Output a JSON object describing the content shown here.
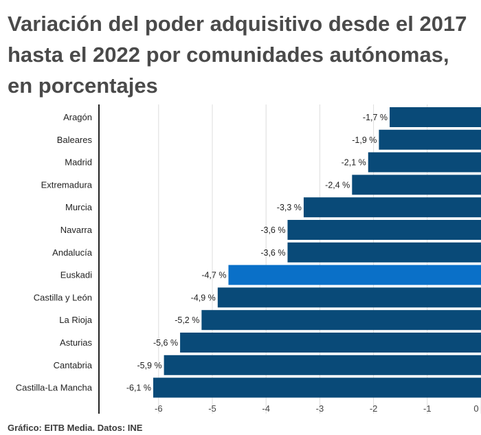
{
  "chart_data": {
    "type": "bar",
    "orientation": "horizontal",
    "title": "Variación del poder adquisitivo  desde el 2017 hasta el 2022 por comunidades autónomas, en porcentajes",
    "categories": [
      "Aragón",
      "Baleares",
      "Madrid",
      "Extremadura",
      "Murcia",
      "Navarra",
      "Andalucía",
      "Euskadi",
      "Castilla y León",
      "La Rioja",
      "Asturias",
      "Cantabria",
      "Castilla-La Mancha"
    ],
    "values": [
      -1.7,
      -1.9,
      -2.1,
      -2.4,
      -3.3,
      -3.6,
      -3.6,
      -4.7,
      -4.9,
      -5.2,
      -5.6,
      -5.9,
      -6.1
    ],
    "value_labels": [
      "-1,7 %",
      "-1,9 %",
      "-2,1 %",
      "-2,4 %",
      "-3,3 %",
      "-3,6 %",
      "-3,6 %",
      "-4,7 %",
      "-4,9 %",
      "-5,2 %",
      "-5,6 %",
      "-5,9 %",
      "-6,1 %"
    ],
    "highlight": "Euskadi",
    "xlim": [
      -7,
      0
    ],
    "xticks": [
      -6,
      -5,
      -4,
      -3,
      -2,
      -1,
      0
    ],
    "xtick_labels": [
      "-6",
      "-5",
      "-4",
      "-3",
      "-2",
      "-1",
      "0"
    ],
    "grid": true,
    "xlabel": "",
    "ylabel": "",
    "colors": {
      "bar": "#094a78",
      "highlight": "#0a70c8",
      "grid": "#dddddd",
      "axis": "#222222",
      "text": "#222222",
      "title": "#4a4a4a"
    }
  },
  "footer": "Gráfico: EITB Media. Datos: INE"
}
